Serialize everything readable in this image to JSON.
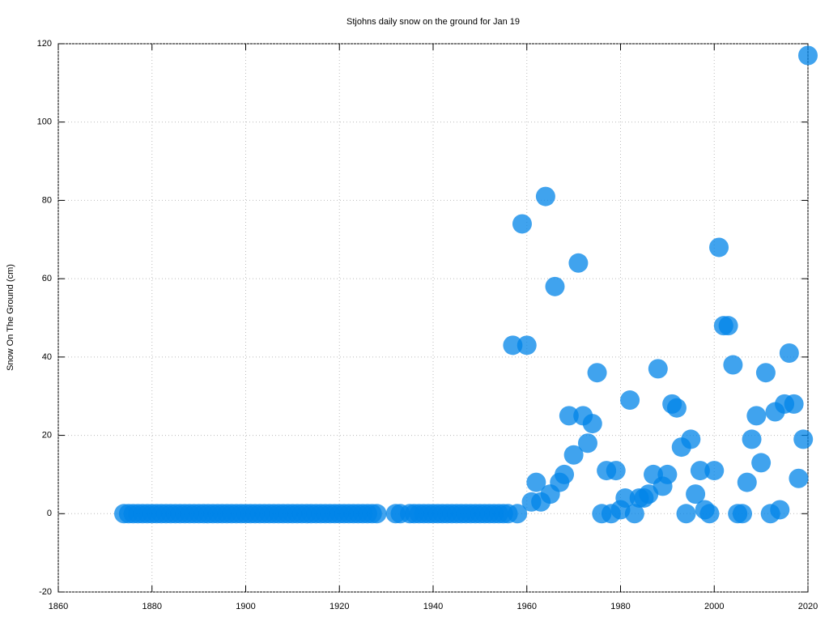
{
  "chart_data": {
    "type": "scatter",
    "title": "Stjohns daily snow on the ground for Jan 19",
    "y_label": "Snow On The Ground (cm)",
    "x": [
      1874,
      1875,
      1876,
      1877,
      1878,
      1879,
      1880,
      1881,
      1882,
      1883,
      1884,
      1885,
      1886,
      1887,
      1888,
      1889,
      1890,
      1891,
      1892,
      1893,
      1894,
      1895,
      1896,
      1897,
      1898,
      1899,
      1900,
      1901,
      1902,
      1903,
      1904,
      1905,
      1906,
      1907,
      1908,
      1909,
      1910,
      1911,
      1912,
      1913,
      1914,
      1915,
      1916,
      1917,
      1918,
      1919,
      1920,
      1921,
      1922,
      1923,
      1924,
      1925,
      1926,
      1927,
      1928,
      1932,
      1933,
      1935,
      1936,
      1937,
      1938,
      1939,
      1940,
      1941,
      1942,
      1943,
      1944,
      1945,
      1946,
      1947,
      1948,
      1949,
      1950,
      1951,
      1952,
      1953,
      1954,
      1955,
      1956,
      1957,
      1958,
      1959,
      1960,
      1961,
      1962,
      1963,
      1964,
      1965,
      1966,
      1967,
      1968,
      1969,
      1970,
      1971,
      1972,
      1973,
      1974,
      1975,
      1976,
      1977,
      1978,
      1979,
      1980,
      1981,
      1982,
      1983,
      1984,
      1985,
      1986,
      1987,
      1988,
      1989,
      1990,
      1991,
      1992,
      1993,
      1994,
      1995,
      1996,
      1997,
      1998,
      1999,
      2000,
      2001,
      2002,
      2003,
      2004,
      2005,
      2006,
      2007,
      2008,
      2009,
      2010,
      2011,
      2012,
      2013,
      2014,
      2015,
      2016,
      2017,
      2018,
      2019,
      2020
    ],
    "values": [
      0,
      0,
      0,
      0,
      0,
      0,
      0,
      0,
      0,
      0,
      0,
      0,
      0,
      0,
      0,
      0,
      0,
      0,
      0,
      0,
      0,
      0,
      0,
      0,
      0,
      0,
      0,
      0,
      0,
      0,
      0,
      0,
      0,
      0,
      0,
      0,
      0,
      0,
      0,
      0,
      0,
      0,
      0,
      0,
      0,
      0,
      0,
      0,
      0,
      0,
      0,
      0,
      0,
      0,
      0,
      0,
      0,
      0,
      0,
      0,
      0,
      0,
      0,
      0,
      0,
      0,
      0,
      0,
      0,
      0,
      0,
      0,
      0,
      0,
      0,
      0,
      0,
      0,
      0,
      43,
      0,
      74,
      43,
      3,
      8,
      3,
      81,
      5,
      58,
      8,
      10,
      25,
      15,
      64,
      25,
      18,
      23,
      36,
      0,
      11,
      0,
      11,
      1,
      4,
      29,
      0,
      4,
      4,
      5,
      10,
      37,
      7,
      10,
      28,
      27,
      17,
      0,
      19,
      5,
      11,
      1,
      0,
      11,
      68,
      48,
      48,
      38,
      0,
      0,
      8,
      19,
      25,
      13,
      36,
      0,
      26,
      1,
      28,
      41,
      28,
      9,
      19,
      117
    ],
    "color": "#0084e8",
    "xlim": [
      1860,
      2020
    ],
    "xticks": [
      1860,
      1880,
      1900,
      1920,
      1940,
      1960,
      1980,
      2000,
      2020
    ],
    "ylim": [
      -20,
      120
    ],
    "yticks": [
      -20,
      0,
      20,
      40,
      60,
      80,
      100,
      120
    ],
    "grid": true
  }
}
